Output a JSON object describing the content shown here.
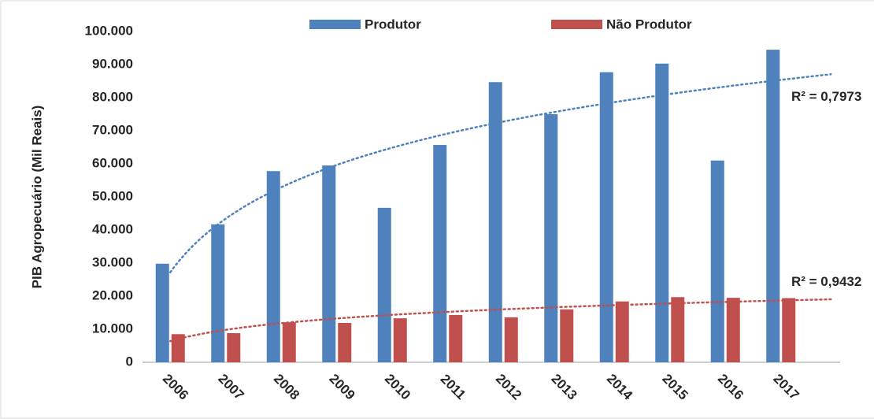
{
  "chart_data": {
    "type": "bar",
    "y_label": "PIB Agropecuário (Mil Reais)",
    "categories": [
      "2006",
      "2007",
      "2008",
      "2009",
      "2010",
      "2011",
      "2012",
      "2013",
      "2014",
      "2015",
      "2016",
      "2017"
    ],
    "series": [
      {
        "name": "Produtor",
        "color": "#4f81bd",
        "values": [
          29800,
          41700,
          57800,
          59500,
          46700,
          65700,
          84700,
          75000,
          87700,
          90300,
          61000,
          94500
        ],
        "trendline": "log",
        "trendline_label": "R² = 0,7973"
      },
      {
        "name": "Não Produtor",
        "color": "#c0504d",
        "values": [
          8500,
          8800,
          12100,
          11900,
          13300,
          14300,
          13600,
          16000,
          18400,
          19700,
          19500,
          19400
        ],
        "trendline": "log",
        "trendline_label": "R² = 0,9432"
      }
    ],
    "ylim": [
      0,
      100000
    ],
    "yticks": [
      {
        "value": 0,
        "label": "0"
      },
      {
        "value": 10000,
        "label": "10.000"
      },
      {
        "value": 20000,
        "label": "20.000"
      },
      {
        "value": 30000,
        "label": "30.000"
      },
      {
        "value": 40000,
        "label": "40.000"
      },
      {
        "value": 50000,
        "label": "50.000"
      },
      {
        "value": 60000,
        "label": "60.000"
      },
      {
        "value": 70000,
        "label": "70.000"
      },
      {
        "value": 80000,
        "label": "80.000"
      },
      {
        "value": 90000,
        "label": "90.000"
      },
      {
        "value": 100000,
        "label": "100.000"
      }
    ],
    "grid": false,
    "legend": "top"
  }
}
